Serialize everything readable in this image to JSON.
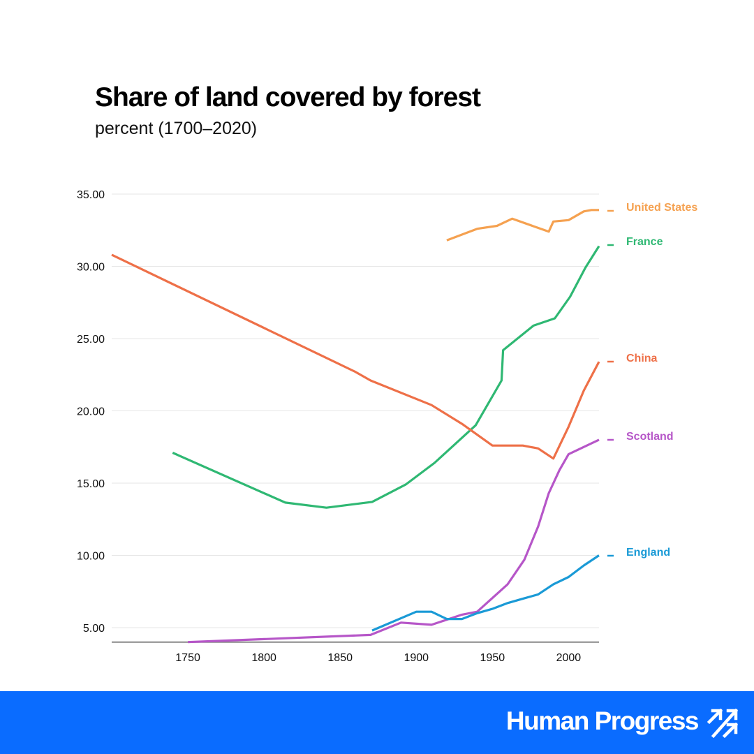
{
  "header": {
    "title": "Share of land covered by forest",
    "subtitle": "percent (1700–2020)"
  },
  "footer": {
    "brand": "Human Progress",
    "logo_icon": "triple-arrow-up-right-icon",
    "background_color": "#0a6cff"
  },
  "chart_data": {
    "type": "line",
    "title": "Share of land covered by forest",
    "subtitle": "percent (1700–2020)",
    "xlabel": "",
    "ylabel": "",
    "xlim": [
      1700,
      2020
    ],
    "ylim": [
      4,
      36
    ],
    "x_ticks": [
      1750,
      1800,
      1850,
      1900,
      1950,
      2000
    ],
    "x_tick_labels": [
      "1750",
      "1800",
      "1850",
      "1900",
      "1950",
      "2000"
    ],
    "y_ticks": [
      5,
      10,
      15,
      20,
      25,
      30,
      35
    ],
    "y_tick_labels": [
      "5.00",
      "10.00",
      "15.00",
      "20.00",
      "25.00",
      "30.00",
      "35.00"
    ],
    "grid": true,
    "legend": "right (end-of-line labels)",
    "series": [
      {
        "name": "United States",
        "color": "#f5a150",
        "x": [
          1920,
          1940,
          1953,
          1963,
          1987,
          1990,
          2000,
          2010,
          2015,
          2020
        ],
        "y": [
          31.8,
          32.6,
          32.8,
          33.3,
          32.4,
          33.1,
          33.2,
          33.8,
          33.9,
          33.9
        ]
      },
      {
        "name": "France",
        "color": "#2fb873",
        "x": [
          1740,
          1814,
          1841,
          1871,
          1893,
          1912,
          1939,
          1956,
          1957,
          1977,
          1991,
          2001,
          2011,
          2020
        ],
        "y": [
          17.1,
          13.65,
          13.3,
          13.7,
          14.9,
          16.4,
          19.0,
          22.1,
          24.2,
          25.9,
          26.4,
          27.9,
          29.9,
          31.4
        ]
      },
      {
        "name": "China",
        "color": "#ee7048",
        "x": [
          1700,
          1860,
          1870,
          1910,
          1930,
          1950,
          1970,
          1980,
          1990,
          2000,
          2010,
          2020
        ],
        "y": [
          30.8,
          22.7,
          22.1,
          20.4,
          19.1,
          17.6,
          17.6,
          17.4,
          16.7,
          18.9,
          21.4,
          23.4
        ]
      },
      {
        "name": "Scotland",
        "color": "#b656c8",
        "x": [
          1750,
          1870,
          1890,
          1910,
          1930,
          1940,
          1960,
          1971,
          1980,
          1987,
          1994,
          2000,
          2020
        ],
        "y": [
          4.0,
          4.5,
          5.35,
          5.2,
          5.9,
          6.1,
          8.0,
          9.7,
          12.0,
          14.3,
          15.9,
          17.0,
          18.0
        ]
      },
      {
        "name": "England",
        "color": "#1a9ad6",
        "x": [
          1871,
          1900,
          1910,
          1920,
          1930,
          1940,
          1950,
          1960,
          1970,
          1980,
          1990,
          2000,
          2010,
          2020
        ],
        "y": [
          4.8,
          6.1,
          6.1,
          5.6,
          5.6,
          6.0,
          6.3,
          6.7,
          7.0,
          7.3,
          8.0,
          8.5,
          9.3,
          10.0
        ]
      }
    ]
  }
}
